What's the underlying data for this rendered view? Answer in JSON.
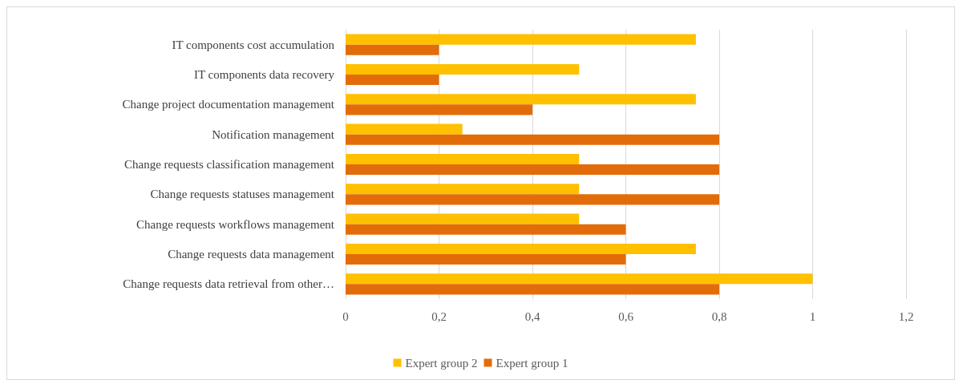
{
  "chart_data": {
    "type": "bar",
    "orientation": "horizontal",
    "categories": [
      "IT components cost accumulation",
      "IT components data recovery",
      "Change project documentation management",
      "Notification management",
      "Change requests classification management",
      "Change requests statuses management",
      "Change requests workflows management",
      "Change requests data management",
      "Change requests data retrieval from other…"
    ],
    "series": [
      {
        "name": "Expert group 2",
        "color": "#ffc000",
        "values": [
          0.75,
          0.5,
          0.75,
          0.25,
          0.5,
          0.5,
          0.5,
          0.75,
          1
        ]
      },
      {
        "name": "Expert group 1",
        "color": "#e36c0a",
        "values": [
          0.2,
          0.2,
          0.4,
          0.8,
          0.8,
          0.8,
          0.6,
          0.6,
          0.8
        ]
      }
    ],
    "xlim": [
      0,
      1.2
    ],
    "xticks": [
      0,
      {
        "value": 0.2,
        "label": "0,2"
      },
      {
        "value": 0.4,
        "label": "0,4"
      },
      {
        "value": 0.6,
        "label": "0,6"
      },
      {
        "value": 0.8,
        "label": "0,8"
      },
      1,
      {
        "value": 1.2,
        "label": "1,2"
      }
    ],
    "grid": "x",
    "legend": "bottom"
  }
}
